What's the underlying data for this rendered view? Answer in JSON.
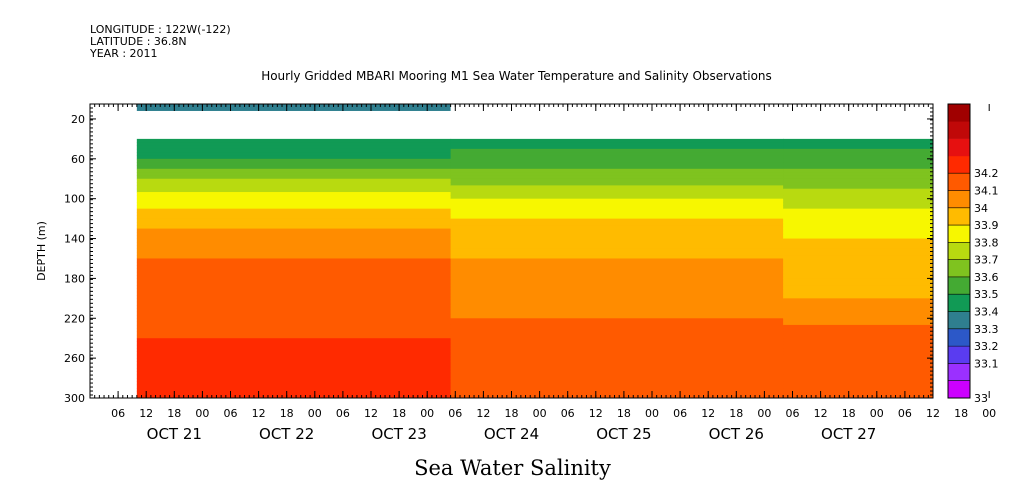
{
  "header": {
    "longitude": "LONGITUDE : 122W(-122)",
    "latitude": "LATITUDE : 36.8N",
    "year": "YEAR : 2011"
  },
  "chart_data": {
    "type": "heatmap",
    "title": "Hourly Gridded MBARI Mooring M1 Sea Water Temperature and Salinity Observations",
    "xlabel": "Sea Water Salinity",
    "ylabel": "DEPTH (m)",
    "x_range_hours": [
      0,
      180
    ],
    "ylim": [
      300,
      5
    ],
    "y_ticks": [
      20,
      60,
      100,
      140,
      180,
      220,
      260,
      300
    ],
    "x_hour_ticks": [
      "06",
      "12",
      "18",
      "00",
      "06",
      "12",
      "18",
      "00",
      "06",
      "12",
      "18",
      "00",
      "06",
      "12",
      "18",
      "00",
      "06",
      "12",
      "18",
      "00",
      "06",
      "12",
      "18",
      "00",
      "06",
      "12",
      "18",
      "00",
      "06",
      "12",
      "18",
      "00"
    ],
    "x_day_labels": [
      "OCT 21",
      "OCT 22",
      "OCT 23",
      "OCT 24",
      "OCT 25",
      "OCT 26",
      "OCT 27"
    ],
    "colorbar": {
      "levels": [
        33,
        33.1,
        33.2,
        33.3,
        33.4,
        33.5,
        33.6,
        33.7,
        33.8,
        33.9,
        34,
        34.1,
        34.2
      ],
      "labels": [
        "33",
        "33.1",
        "33.2",
        "33.3",
        "33.4",
        "33.5",
        "33.6",
        "33.7",
        "33.8",
        "33.9",
        "34",
        "34.1",
        "34.2"
      ],
      "colors": [
        "#cc00ff",
        "#9b30ff",
        "#5a3cf0",
        "#2c58c8",
        "#2f7f8f",
        "#119a55",
        "#44aa33",
        "#7fc31f",
        "#b8da10",
        "#f7f700",
        "#ffbb00",
        "#ff8c00",
        "#ff5a00",
        "#ff2a00",
        "#e61010",
        "#c00808",
        "#a00000"
      ]
    },
    "series": [
      {
        "period": "Oct 21 10:00 - Oct 24 05:00",
        "depth_m": 10,
        "salinity": 33.3
      },
      {
        "period": "Oct 21 10:00 - Oct 24 05:00",
        "depth_m": [
          40,
          60,
          80,
          100,
          120,
          140,
          160,
          180,
          200,
          220,
          240,
          260,
          280,
          300
        ],
        "salinity": [
          33.4,
          33.5,
          33.7,
          33.85,
          33.95,
          34.05,
          34.1,
          34.1,
          34.12,
          34.15,
          34.2,
          34.25,
          34.2,
          34.2
        ]
      },
      {
        "period": "Oct 24 05:00 - Oct 26 04:00",
        "depth_m": [
          40,
          60,
          80,
          100,
          120,
          140,
          160,
          180,
          200,
          220,
          240,
          260,
          280,
          300
        ],
        "salinity": [
          33.45,
          33.55,
          33.65,
          33.8,
          33.9,
          33.95,
          34.0,
          34.02,
          34.05,
          34.1,
          34.15,
          34.2,
          34.1,
          34.1
        ]
      },
      {
        "period": "Oct 26 04:00 - Oct 28 00:00",
        "depth_m": [
          40,
          60,
          80,
          100,
          120,
          140,
          160,
          180,
          200,
          220,
          240,
          260,
          280,
          300
        ],
        "salinity": [
          33.45,
          33.55,
          33.65,
          33.75,
          33.85,
          33.9,
          33.95,
          33.98,
          34.0,
          34.08,
          34.15,
          34.2,
          34.1,
          34.1
        ]
      }
    ]
  }
}
